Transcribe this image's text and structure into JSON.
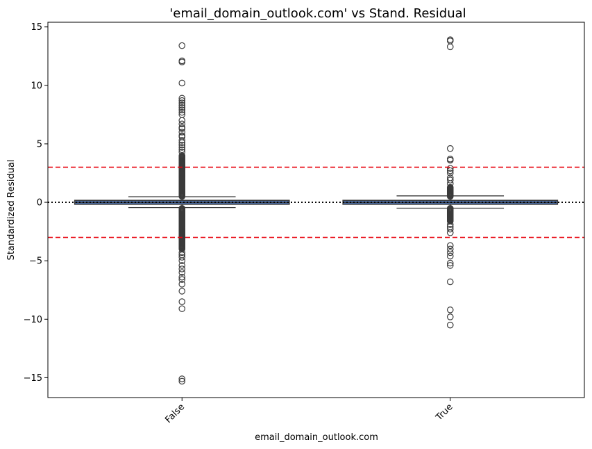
{
  "chart_data": {
    "type": "box",
    "title": "'email_domain_outlook.com' vs Stand. Residual",
    "xlabel": "email_domain_outlook.com",
    "ylabel": "Standardized Residual",
    "categories": [
      "False",
      "True"
    ],
    "ylim": [
      -16.7,
      15.4
    ],
    "yticks": [
      -15,
      -10,
      -5,
      0,
      5,
      10,
      15
    ],
    "grid": false,
    "reference_lines": [
      {
        "value": 0,
        "style": "dotted",
        "color": "#000000"
      },
      {
        "value": 3,
        "style": "dashed",
        "color": "#e8000b"
      },
      {
        "value": -3,
        "style": "dashed",
        "color": "#e8000b"
      }
    ],
    "boxes": [
      {
        "category": "False",
        "q1": -0.08,
        "median": 0.0,
        "q3": 0.08,
        "whisker_low": -0.45,
        "whisker_high": 0.48,
        "outliers_dense_ranges": [
          [
            0.5,
            4.0
          ],
          [
            -4.0,
            -0.5
          ]
        ],
        "outliers": [
          13.4,
          12.1,
          12.0,
          10.2,
          8.9,
          8.7,
          8.5,
          8.3,
          8.1,
          7.9,
          7.7,
          7.5,
          7.0,
          6.7,
          6.4,
          6.3,
          6.0,
          5.7,
          5.6,
          5.3,
          5.1,
          4.9,
          4.7,
          4.5,
          4.3,
          -4.3,
          -4.5,
          -4.7,
          -5.0,
          -5.4,
          -5.7,
          -6.0,
          -6.4,
          -6.6,
          -7.0,
          -7.6,
          -8.5,
          -9.1,
          -15.1,
          -15.3
        ]
      },
      {
        "category": "True",
        "q1": -0.08,
        "median": 0.0,
        "q3": 0.08,
        "whisker_low": -0.5,
        "whisker_high": 0.55,
        "outliers_dense_ranges": [
          [
            0.5,
            1.3
          ],
          [
            -1.6,
            -0.5
          ]
        ],
        "outliers": [
          13.9,
          13.8,
          13.3,
          4.6,
          3.7,
          3.6,
          2.9,
          2.7,
          2.5,
          2.1,
          1.9,
          1.6,
          -1.9,
          -2.1,
          -2.3,
          -2.6,
          -3.7,
          -4.0,
          -4.3,
          -4.6,
          -5.2,
          -5.4,
          -6.8,
          -9.2,
          -9.8,
          -10.5
        ]
      }
    ],
    "box_color": "#4c72b0",
    "outline_color": "#3a3a3a"
  }
}
